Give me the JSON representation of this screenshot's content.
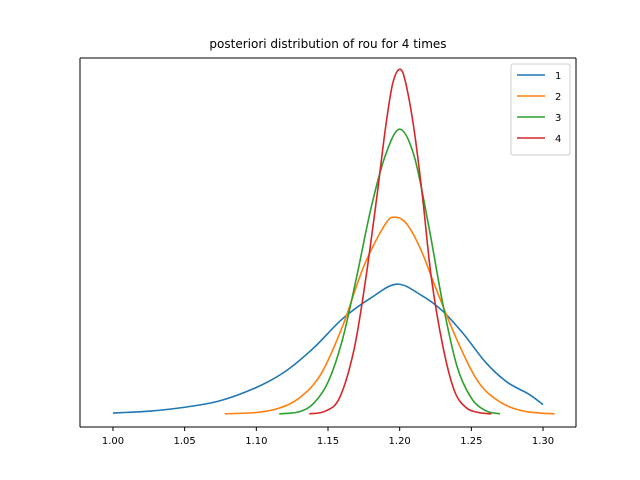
{
  "chart_data": {
    "type": "line",
    "title": "posteriori distribution of rou for 4 times",
    "xlabel": "",
    "ylabel": "",
    "xlim": [
      0.977,
      1.323
    ],
    "ylim": [
      -0.5,
      13.5
    ],
    "xticks": [
      1.0,
      1.05,
      1.1,
      1.15,
      1.2,
      1.25,
      1.3
    ],
    "xtick_labels": [
      "1.00",
      "1.05",
      "1.10",
      "1.15",
      "1.20",
      "1.25",
      "1.30"
    ],
    "y_ticks_visible": false,
    "grid": false,
    "legend": {
      "placement": "top-right"
    },
    "series": [
      {
        "name": "1",
        "color": "#1f77b4",
        "x": [
          1.0,
          1.025,
          1.05,
          1.075,
          1.1,
          1.12,
          1.14,
          1.16,
          1.18,
          1.198,
          1.215,
          1.23,
          1.245,
          1.26,
          1.275,
          1.29,
          1.3
        ],
        "y": [
          0.03,
          0.1,
          0.25,
          0.5,
          1.0,
          1.6,
          2.5,
          3.6,
          4.4,
          4.92,
          4.5,
          3.9,
          3.0,
          1.95,
          1.2,
          0.75,
          0.35
        ]
      },
      {
        "name": "2",
        "color": "#ff7f0e",
        "x": [
          1.078,
          1.1,
          1.115,
          1.13,
          1.145,
          1.16,
          1.175,
          1.19,
          1.197,
          1.205,
          1.215,
          1.225,
          1.24,
          1.255,
          1.27,
          1.285,
          1.298,
          1.308
        ],
        "y": [
          0.0,
          0.05,
          0.2,
          0.6,
          1.5,
          3.3,
          5.6,
          7.2,
          7.46,
          7.2,
          6.2,
          4.8,
          2.8,
          1.2,
          0.45,
          0.12,
          0.03,
          0.0
        ]
      },
      {
        "name": "3",
        "color": "#2ca02c",
        "x": [
          1.116,
          1.13,
          1.14,
          1.15,
          1.16,
          1.17,
          1.18,
          1.19,
          1.2,
          1.21,
          1.22,
          1.23,
          1.24,
          1.25,
          1.26,
          1.27
        ],
        "y": [
          0.0,
          0.08,
          0.4,
          1.2,
          2.8,
          5.2,
          7.8,
          9.8,
          10.8,
          9.8,
          7.2,
          4.2,
          1.8,
          0.6,
          0.12,
          0.0
        ]
      },
      {
        "name": "4",
        "color": "#d62728",
        "x": [
          1.137,
          1.148,
          1.158,
          1.168,
          1.176,
          1.184,
          1.19,
          1.195,
          1.2,
          1.204,
          1.21,
          1.216,
          1.222,
          1.23,
          1.238,
          1.246,
          1.255,
          1.264
        ],
        "y": [
          0.0,
          0.1,
          0.6,
          2.4,
          5.0,
          8.2,
          10.8,
          12.5,
          13.07,
          12.6,
          10.8,
          8.2,
          5.2,
          2.6,
          0.9,
          0.25,
          0.05,
          0.0
        ]
      }
    ]
  }
}
